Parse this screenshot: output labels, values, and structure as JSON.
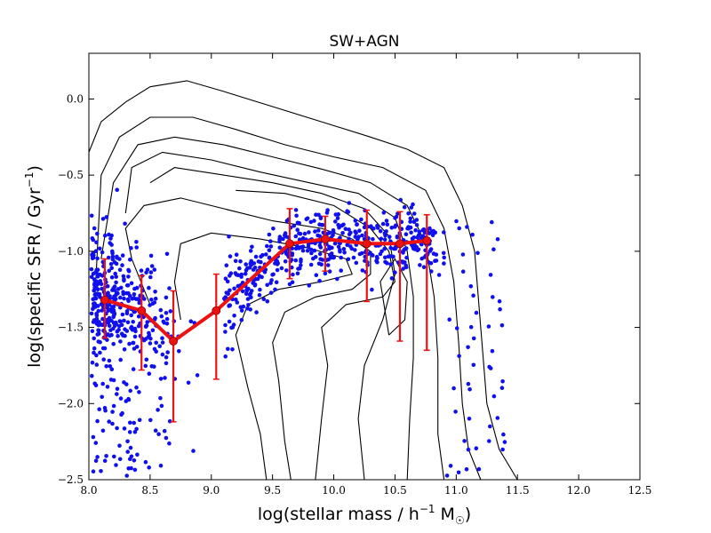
{
  "chart_data": {
    "type": "scatter",
    "title": "SW+AGN",
    "xlabel": "log(stellar mass / h",
    "xlabel_sup": "−1",
    "xlabel_tail": " M",
    "xlabel_sub": "☉",
    "xlabel_close": ")",
    "ylabel": "log(specific SFR / Gyr",
    "ylabel_sup": "−1",
    "ylabel_close": ")",
    "xlim": [
      8.0,
      12.5
    ],
    "ylim": [
      -2.5,
      0.3
    ],
    "xticks": [
      8.0,
      8.5,
      9.0,
      9.5,
      10.0,
      10.5,
      11.0,
      11.5,
      12.0,
      12.5
    ],
    "xtick_labels": [
      "8.0",
      "8.5",
      "9.0",
      "9.5",
      "10.0",
      "10.5",
      "11.0",
      "11.5",
      "12.0",
      "12.5"
    ],
    "yticks": [
      0.0,
      -0.5,
      -1.0,
      -1.5,
      -2.0,
      -2.5
    ],
    "ytick_labels": [
      "0.0",
      "−0.5",
      "−1.0",
      "−1.5",
      "−2.0",
      "−2.5"
    ],
    "scatter_color": "#1010ee",
    "line_color": "#ee1111",
    "contour_color": "#000000",
    "median_series": {
      "name": "median",
      "x": [
        8.13,
        8.43,
        8.69,
        9.04,
        9.64,
        9.93,
        10.27,
        10.54,
        10.76
      ],
      "y": [
        -1.32,
        -1.39,
        -1.59,
        -1.39,
        -0.95,
        -0.92,
        -0.95,
        -0.95,
        -0.93
      ],
      "err_low": [
        -1.57,
        -1.78,
        -2.12,
        -1.84,
        -1.18,
        -1.13,
        -1.33,
        -1.59,
        -1.65
      ],
      "err_high": [
        -1.05,
        -1.16,
        -1.26,
        -1.15,
        -0.72,
        -0.77,
        -0.73,
        -0.74,
        -0.76
      ]
    },
    "contours": [
      [
        [
          8.0,
          -1.3
        ],
        [
          8.0,
          -0.35
        ],
        [
          8.1,
          -0.15
        ],
        [
          8.3,
          -0.02
        ],
        [
          8.5,
          0.08
        ],
        [
          8.8,
          0.12
        ],
        [
          9.1,
          0.05
        ],
        [
          9.5,
          -0.05
        ],
        [
          9.9,
          -0.15
        ],
        [
          10.3,
          -0.25
        ],
        [
          10.6,
          -0.33
        ],
        [
          10.9,
          -0.45
        ],
        [
          11.05,
          -0.7
        ],
        [
          11.15,
          -1.0
        ],
        [
          11.2,
          -1.5
        ],
        [
          11.25,
          -2.0
        ],
        [
          11.35,
          -2.3
        ],
        [
          11.5,
          -2.5
        ]
      ],
      [
        [
          8.05,
          -1.3
        ],
        [
          8.1,
          -0.5
        ],
        [
          8.25,
          -0.25
        ],
        [
          8.5,
          -0.12
        ],
        [
          8.85,
          -0.12
        ],
        [
          9.2,
          -0.2
        ],
        [
          9.6,
          -0.3
        ],
        [
          10.0,
          -0.38
        ],
        [
          10.4,
          -0.45
        ],
        [
          10.75,
          -0.6
        ],
        [
          10.9,
          -0.85
        ],
        [
          10.98,
          -1.2
        ],
        [
          11.02,
          -1.6
        ],
        [
          11.05,
          -2.0
        ],
        [
          11.1,
          -2.3
        ],
        [
          11.2,
          -2.5
        ]
      ],
      [
        [
          8.1,
          -1.05
        ],
        [
          8.2,
          -0.55
        ],
        [
          8.4,
          -0.3
        ],
        [
          8.7,
          -0.25
        ],
        [
          9.1,
          -0.3
        ],
        [
          9.5,
          -0.38
        ],
        [
          9.9,
          -0.46
        ],
        [
          10.3,
          -0.55
        ],
        [
          10.6,
          -0.7
        ],
        [
          10.75,
          -0.95
        ],
        [
          10.82,
          -1.3
        ],
        [
          10.85,
          -1.7
        ],
        [
          10.85,
          -2.2
        ],
        [
          10.9,
          -2.5
        ]
      ],
      [
        [
          8.3,
          -0.75
        ],
        [
          8.35,
          -0.45
        ],
        [
          8.6,
          -0.35
        ],
        [
          9.0,
          -0.4
        ],
        [
          9.4,
          -0.48
        ],
        [
          9.8,
          -0.55
        ],
        [
          10.2,
          -0.62
        ],
        [
          10.5,
          -0.78
        ],
        [
          10.6,
          -1.0
        ],
        [
          10.65,
          -1.3
        ],
        [
          10.65,
          -1.7
        ],
        [
          10.62,
          -2.1
        ],
        [
          10.6,
          -2.5
        ]
      ],
      [
        [
          8.5,
          -0.55
        ],
        [
          8.7,
          -0.45
        ],
        [
          9.1,
          -0.5
        ],
        [
          9.5,
          -0.55
        ],
        [
          9.9,
          -0.62
        ],
        [
          10.25,
          -0.72
        ],
        [
          10.45,
          -0.9
        ],
        [
          10.5,
          -1.15
        ],
        [
          10.4,
          -1.45
        ],
        [
          10.25,
          -1.75
        ],
        [
          10.2,
          -2.1
        ],
        [
          10.25,
          -2.5
        ]
      ],
      [
        [
          9.2,
          -0.6
        ],
        [
          9.6,
          -0.62
        ],
        [
          10.0,
          -0.7
        ],
        [
          10.3,
          -0.85
        ],
        [
          10.45,
          -1.0
        ],
        [
          10.5,
          -1.2
        ],
        [
          10.4,
          -1.3
        ],
        [
          10.1,
          -1.35
        ],
        [
          9.9,
          -1.5
        ],
        [
          9.95,
          -1.75
        ],
        [
          9.9,
          -2.1
        ],
        [
          9.85,
          -2.5
        ]
      ],
      [
        [
          8.5,
          -1.35
        ],
        [
          8.35,
          -1.05
        ],
        [
          8.3,
          -0.85
        ],
        [
          8.45,
          -0.7
        ],
        [
          8.75,
          -0.65
        ],
        [
          9.1,
          -0.72
        ],
        [
          9.5,
          -0.8
        ],
        [
          9.9,
          -0.85
        ],
        [
          10.15,
          -0.92
        ],
        [
          10.3,
          -1.0
        ],
        [
          10.3,
          -1.15
        ],
        [
          10.15,
          -1.25
        ],
        [
          9.85,
          -1.3
        ],
        [
          9.6,
          -1.4
        ],
        [
          9.5,
          -1.6
        ],
        [
          9.55,
          -1.85
        ],
        [
          9.6,
          -2.25
        ],
        [
          9.65,
          -2.5
        ]
      ],
      [
        [
          8.75,
          -1.45
        ],
        [
          8.7,
          -1.2
        ],
        [
          8.75,
          -0.95
        ],
        [
          9.0,
          -0.88
        ],
        [
          9.4,
          -0.92
        ],
        [
          9.8,
          -0.98
        ],
        [
          10.1,
          -1.05
        ],
        [
          10.15,
          -1.15
        ],
        [
          9.9,
          -1.2
        ],
        [
          9.55,
          -1.25
        ],
        [
          9.3,
          -1.35
        ],
        [
          9.2,
          -1.55
        ],
        [
          9.3,
          -1.9
        ],
        [
          9.4,
          -2.2
        ],
        [
          9.45,
          -2.5
        ]
      ],
      [
        [
          10.45,
          -1.55
        ],
        [
          10.38,
          -1.2
        ],
        [
          10.5,
          -1.05
        ],
        [
          10.6,
          -1.2
        ],
        [
          10.58,
          -1.45
        ],
        [
          10.45,
          -1.55
        ]
      ]
    ]
  }
}
